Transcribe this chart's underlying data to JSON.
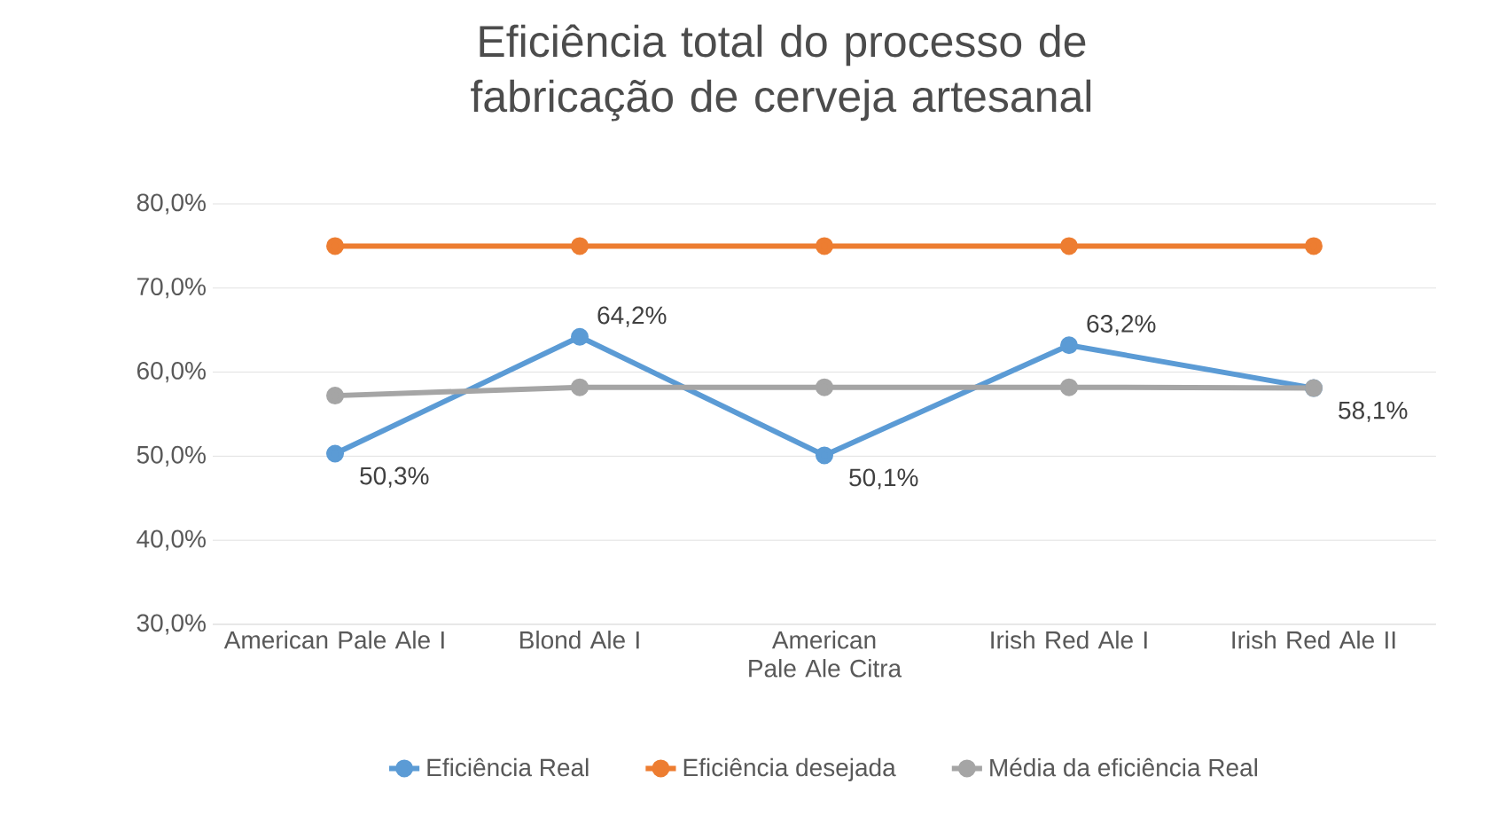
{
  "chart_data": {
    "type": "line",
    "title": "Eficiência total do processo de fabricação de cerveja artesanal",
    "categories": [
      "American Pale Ale I",
      "Blond Ale I",
      "American Pale Ale Citra",
      "Irish Red Ale I",
      "Irish Red Ale II"
    ],
    "series": [
      {
        "name": "Eficiência Real",
        "color": "#5b9bd5",
        "values": [
          50.3,
          64.2,
          50.1,
          63.2,
          58.1
        ],
        "value_labels": [
          "50,3%",
          "64,2%",
          "50,1%",
          "63,2%",
          "58,1%"
        ]
      },
      {
        "name": "Eficiência desejada",
        "color": "#ed7d31",
        "values": [
          75,
          75,
          75,
          75,
          75
        ]
      },
      {
        "name": "Média da eficiência Real",
        "color": "#a5a5a5",
        "values": [
          57.2,
          58.2,
          58.2,
          58.2,
          58.1
        ]
      }
    ],
    "ylim": [
      30,
      80
    ],
    "yticks": [
      {
        "value": 30,
        "label": "30,0%"
      },
      {
        "value": 40,
        "label": "40,0%"
      },
      {
        "value": 50,
        "label": "50,0%"
      },
      {
        "value": 60,
        "label": "60,0%"
      },
      {
        "value": 70,
        "label": "70,0%"
      },
      {
        "value": 80,
        "label": "80,0%"
      }
    ],
    "grid": "y",
    "legend": "bottom",
    "marker": "circle",
    "line_style": "solid"
  }
}
